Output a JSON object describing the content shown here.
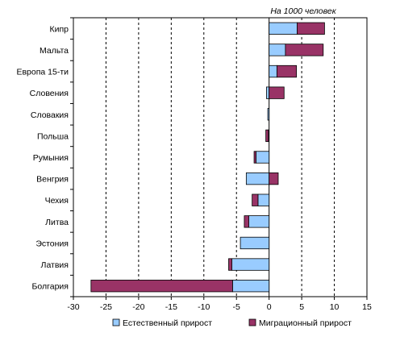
{
  "chart_data": {
    "type": "bar",
    "orientation": "horizontal",
    "stacked": true,
    "unit_label": "На 1000 человек",
    "categories": [
      "Кипр",
      "Мальта",
      "Европа 15-ти",
      "Словения",
      "Словакия",
      "Польша",
      "Румыния",
      "Венгрия",
      "Чехия",
      "Литва",
      "Эстония",
      "Латвия",
      "Болгария"
    ],
    "series": [
      {
        "name": "Естественный прирост",
        "color": "#99ccff",
        "values": [
          4.3,
          2.5,
          1.2,
          -0.4,
          -0.2,
          -0.1,
          -2.0,
          -3.5,
          -1.7,
          -3.1,
          -4.4,
          -5.7,
          -5.6
        ]
      },
      {
        "name": "Миграционный прирост",
        "color": "#993366",
        "values": [
          4.2,
          5.8,
          3.0,
          2.3,
          0.0,
          -0.4,
          -0.3,
          1.4,
          -0.9,
          -0.7,
          0.0,
          -0.5,
          -21.7
        ]
      }
    ],
    "xlim": [
      -30,
      15
    ],
    "xticks": [
      -30,
      -25,
      -20,
      -15,
      -10,
      -5,
      0,
      5,
      10,
      15
    ],
    "gridlines": "vertical dashed",
    "legend_position": "bottom"
  }
}
